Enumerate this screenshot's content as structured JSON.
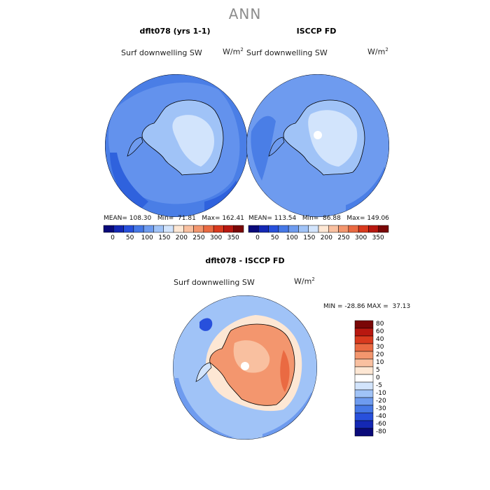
{
  "title": "ANN",
  "panels": {
    "model": {
      "title": "dflt078 (yrs 1-1)",
      "variable": "Surf downwelling SW",
      "units": "W/m",
      "units_exp": "2",
      "stats": "MEAN= 108.30   Min=  71.81   Max= 162.41"
    },
    "obs": {
      "title": "ISCCP FD",
      "variable": "Surf downwelling SW",
      "units": "W/m",
      "units_exp": "2",
      "stats": "MEAN= 113.54   Min=  86.88   Max= 149.06"
    },
    "diff": {
      "title": "dflt078 - ISCCP FD",
      "variable": "Surf downwelling SW",
      "units": "W/m",
      "units_exp": "2",
      "stats": "MIN = -28.86 MAX =  37.13"
    }
  },
  "colorbar_abs": {
    "labels": [
      "0",
      "50",
      "100",
      "150",
      "200",
      "250",
      "300",
      "350"
    ],
    "colors": [
      "#0a0a7a",
      "#1428b4",
      "#2850dc",
      "#4678e6",
      "#6e9bef",
      "#a0c3f7",
      "#d2e4fc",
      "#fde7d4",
      "#f9c0a0",
      "#f3966e",
      "#ea6a42",
      "#d93a1e",
      "#b81810",
      "#7a0707"
    ]
  },
  "colorbar_diff": {
    "labels": [
      "80",
      "60",
      "40",
      "30",
      "20",
      "10",
      "5",
      "0",
      "-5",
      "-10",
      "-20",
      "-30",
      "-40",
      "-60",
      "-80"
    ],
    "colors": [
      "#7a0707",
      "#b81810",
      "#d93a1e",
      "#ea6a42",
      "#f3966e",
      "#f9c0a0",
      "#fde7d4",
      "#ffffff",
      "#d2e4fc",
      "#a0c3f7",
      "#6e9bef",
      "#4678e6",
      "#2850dc",
      "#1428b4",
      "#0a0a7a"
    ]
  }
}
